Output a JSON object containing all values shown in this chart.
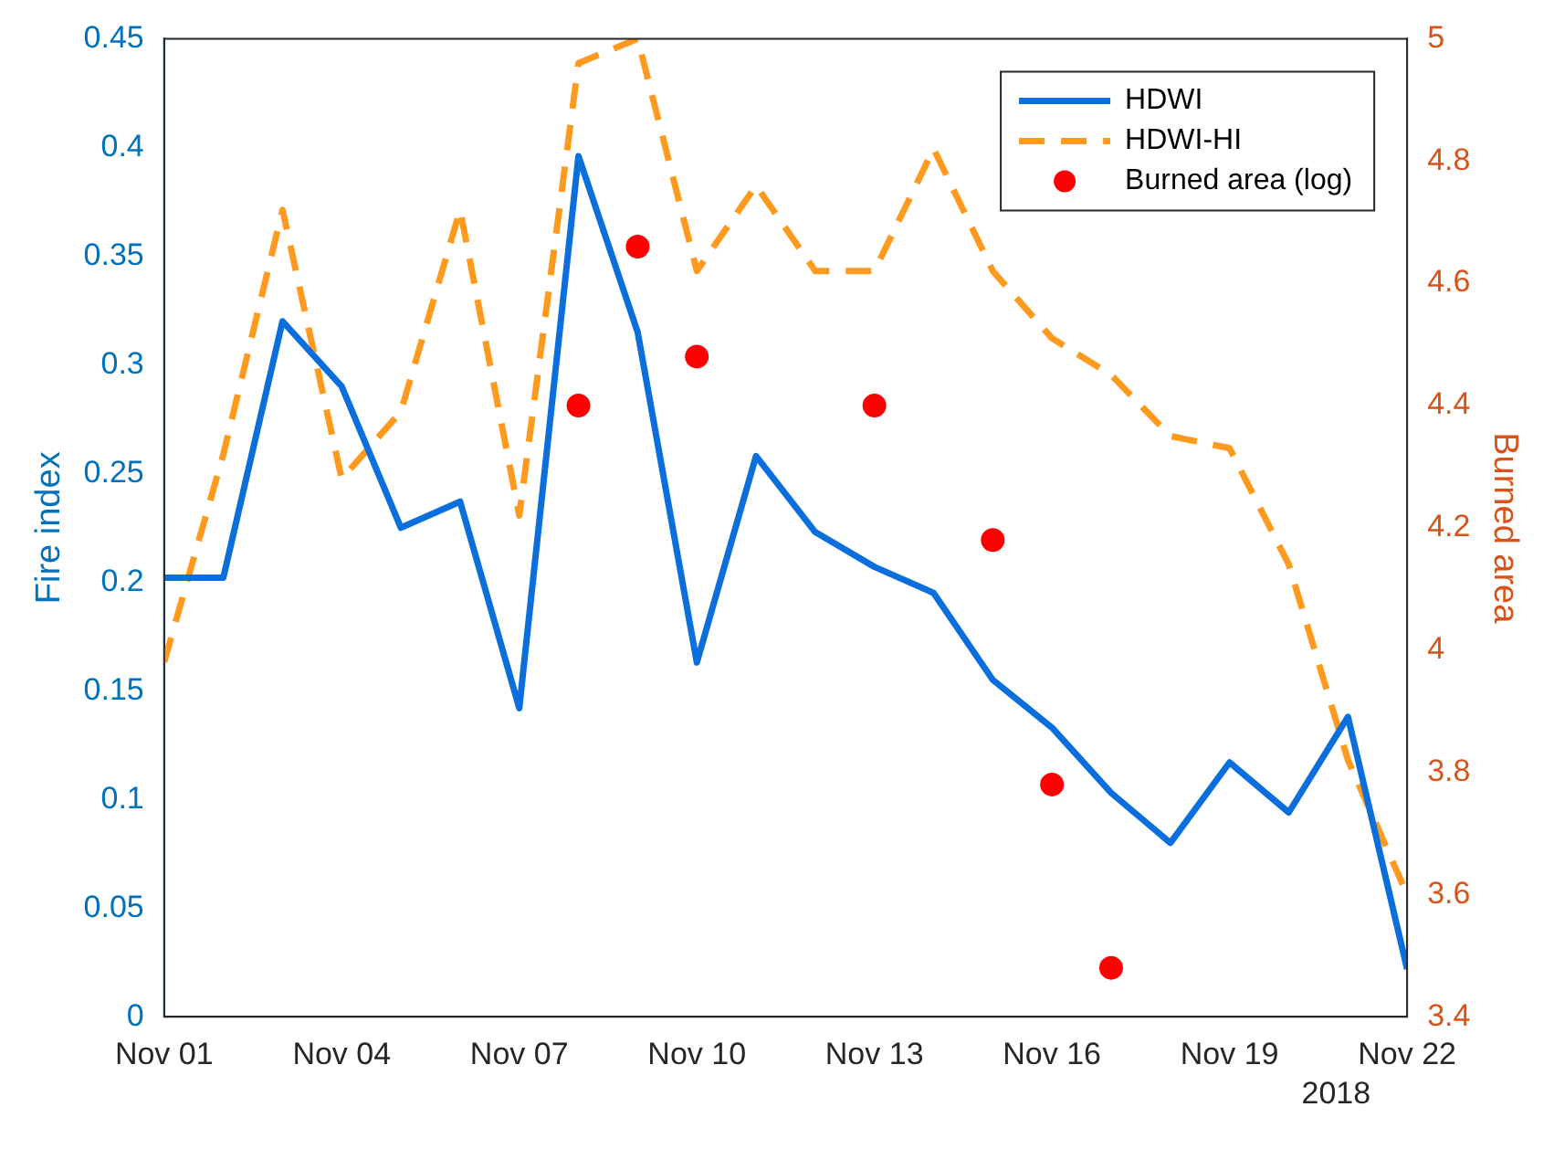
{
  "chart_data": {
    "type": "line",
    "xlim": [
      "2018-11-01",
      "2018-11-22"
    ],
    "xticks": [
      {
        "value": "2018-11-01",
        "label": "Nov 01"
      },
      {
        "value": "2018-11-04",
        "label": "Nov 04"
      },
      {
        "value": "2018-11-07",
        "label": "Nov 07"
      },
      {
        "value": "2018-11-10",
        "label": "Nov 10"
      },
      {
        "value": "2018-11-13",
        "label": "Nov 13"
      },
      {
        "value": "2018-11-16",
        "label": "Nov 16"
      },
      {
        "value": "2018-11-19",
        "label": "Nov 19"
      },
      {
        "value": "2018-11-22",
        "label": "Nov 22"
      }
    ],
    "x": [
      "2018-11-01",
      "2018-11-02",
      "2018-11-03",
      "2018-11-04",
      "2018-11-05",
      "2018-11-06",
      "2018-11-07",
      "2018-11-08",
      "2018-11-09",
      "2018-11-10",
      "2018-11-11",
      "2018-11-12",
      "2018-11-13",
      "2018-11-14",
      "2018-11-15",
      "2018-11-16",
      "2018-11-17",
      "2018-11-18",
      "2018-11-19",
      "2018-11-20",
      "2018-11-21",
      "2018-11-22"
    ],
    "ylabel": "Fire index",
    "y2label": "Burned area",
    "ylim": [
      0,
      0.45
    ],
    "yticks": [
      0,
      0.05,
      0.1,
      0.15,
      0.2,
      0.25,
      0.3,
      0.35,
      0.4,
      0.45
    ],
    "y2lim": [
      3.4,
      5
    ],
    "y2ticks": [
      3.4,
      3.6,
      3.8,
      4,
      4.2,
      4.4,
      4.6,
      4.8,
      5
    ],
    "grid": false,
    "legend": "top right",
    "annotations": [
      "2018"
    ],
    "series": [
      {
        "name": "HDWI",
        "type": "line",
        "color": "#0a6fdc",
        "line_style": "solid",
        "marker": "none",
        "values": [
          0.202,
          0.202,
          0.32,
          0.29,
          0.225,
          0.237,
          0.142,
          0.396,
          0.315,
          0.163,
          0.258,
          0.223,
          0.207,
          0.195,
          0.155,
          0.133,
          0.103,
          0.08,
          0.117,
          0.094,
          0.138,
          0.022
        ]
      },
      {
        "name": "HDWI-HI",
        "type": "line",
        "axis": "y2",
        "color": "#ff9a1e",
        "line_style": "dashed",
        "marker": "none",
        "values": [
          3.98,
          4.32,
          4.72,
          4.28,
          4.39,
          4.72,
          4.22,
          4.96,
          5.0,
          4.62,
          4.76,
          4.62,
          4.62,
          4.82,
          4.62,
          4.51,
          4.45,
          4.35,
          4.33,
          4.14,
          3.82,
          3.6
        ]
      },
      {
        "name": "Burned area (log)",
        "type": "scatter",
        "axis": "y2",
        "color": "#ff0000",
        "marker": "circle",
        "x": [
          "2018-11-08",
          "2018-11-09",
          "2018-11-10",
          "2018-11-13",
          "2018-11-15",
          "2018-11-16",
          "2018-11-17"
        ],
        "values": [
          4.4,
          4.66,
          4.48,
          4.4,
          4.18,
          3.78,
          3.48
        ]
      }
    ]
  }
}
